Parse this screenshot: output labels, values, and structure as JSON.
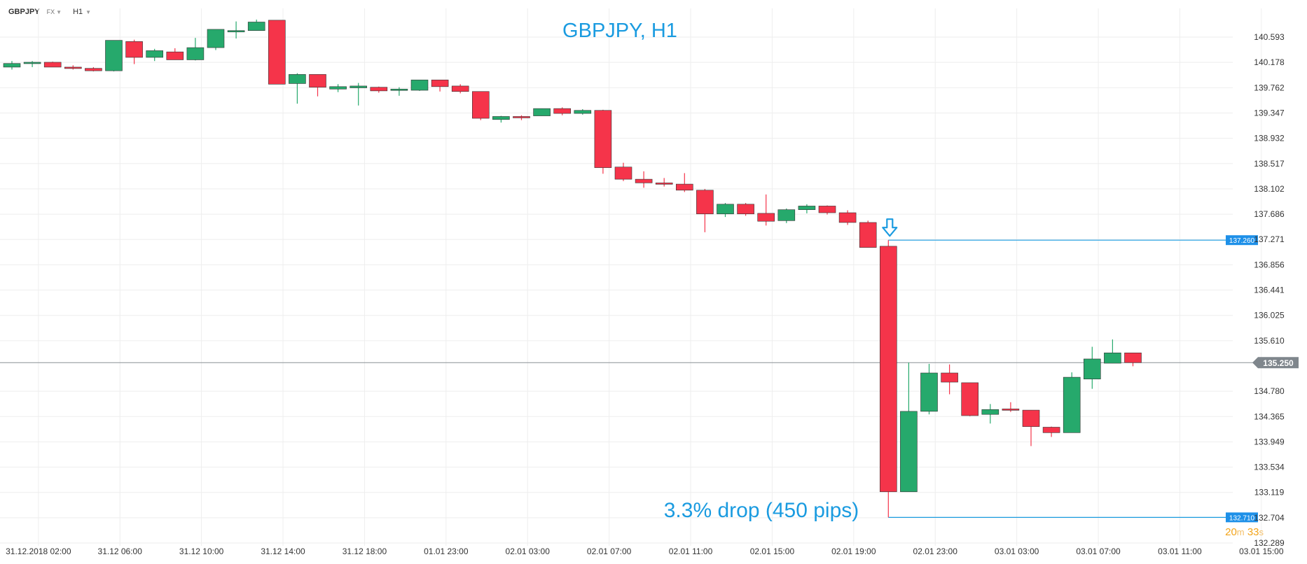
{
  "toolbar": {
    "symbol": "GBPJPY",
    "market": "FX",
    "timeframe": "H1"
  },
  "countdown": {
    "minutes": "20",
    "minutes_unit": "m",
    "seconds": "33",
    "seconds_unit": "s"
  },
  "colors": {
    "up": "#26a96c",
    "down": "#f5344a",
    "accent": "#1a9be0",
    "current": "#8a9096",
    "grid": "#eeeeee"
  },
  "chart_data": {
    "type": "candlestick",
    "title": "GBPJPY, H1",
    "annotation": "3.3% drop (450 pips)",
    "ylim": [
      132.289,
      140.593
    ],
    "y_ticks": [
      "140.593",
      "140.178",
      "139.762",
      "139.347",
      "138.932",
      "138.517",
      "138.102",
      "137.686",
      "137.271",
      "136.856",
      "136.441",
      "136.025",
      "135.610",
      "135.250",
      "134.780",
      "134.365",
      "133.949",
      "133.534",
      "133.119",
      "132.704",
      "132.289"
    ],
    "x_ticks": [
      {
        "label": "31.12.2018  02:00",
        "index": 1.3
      },
      {
        "label": "31.12  06:00",
        "index": 5.3
      },
      {
        "label": "31.12  10:00",
        "index": 9.3
      },
      {
        "label": "31.12  14:00",
        "index": 13.3
      },
      {
        "label": "31.12  18:00",
        "index": 17.3
      },
      {
        "label": "01.01  23:00",
        "index": 21.3
      },
      {
        "label": "02.01  03:00",
        "index": 25.3
      },
      {
        "label": "02.01  07:00",
        "index": 29.3
      },
      {
        "label": "02.01  11:00",
        "index": 33.3
      },
      {
        "label": "02.01  15:00",
        "index": 37.3
      },
      {
        "label": "02.01  19:00",
        "index": 41.3
      },
      {
        "label": "02.01  23:00",
        "index": 45.3
      },
      {
        "label": "03.01  03:00",
        "index": 49.3
      },
      {
        "label": "03.01  07:00",
        "index": 53.3
      },
      {
        "label": "03.01  11:00",
        "index": 57.3
      },
      {
        "label": "03.01  15:00",
        "index": 61.3
      }
    ],
    "current_price": "135.250",
    "levels": [
      {
        "label": "137.260",
        "value": 137.26,
        "from_index": 43
      },
      {
        "label": "132.710",
        "value": 132.71,
        "from_index": 43
      }
    ],
    "signal_arrow_index": 43,
    "candles": [
      {
        "o": 140.1,
        "h": 140.2,
        "l": 140.06,
        "c": 140.16
      },
      {
        "o": 140.16,
        "h": 140.2,
        "l": 140.1,
        "c": 140.18
      },
      {
        "o": 140.18,
        "h": 140.19,
        "l": 140.1,
        "c": 140.1
      },
      {
        "o": 140.1,
        "h": 140.13,
        "l": 140.06,
        "c": 140.08
      },
      {
        "o": 140.08,
        "h": 140.1,
        "l": 140.03,
        "c": 140.04
      },
      {
        "o": 140.04,
        "h": 140.54,
        "l": 140.03,
        "c": 140.54
      },
      {
        "o": 140.52,
        "h": 140.55,
        "l": 140.15,
        "c": 140.26
      },
      {
        "o": 140.26,
        "h": 140.4,
        "l": 140.2,
        "c": 140.37
      },
      {
        "o": 140.35,
        "h": 140.41,
        "l": 140.22,
        "c": 140.22
      },
      {
        "o": 140.22,
        "h": 140.58,
        "l": 140.21,
        "c": 140.42
      },
      {
        "o": 140.42,
        "h": 140.72,
        "l": 140.38,
        "c": 140.72
      },
      {
        "o": 140.68,
        "h": 140.85,
        "l": 140.57,
        "c": 140.7
      },
      {
        "o": 140.7,
        "h": 140.88,
        "l": 140.7,
        "c": 140.84
      },
      {
        "o": 140.87,
        "h": 140.87,
        "l": 139.82,
        "c": 139.82
      },
      {
        "o": 139.83,
        "h": 140.0,
        "l": 139.5,
        "c": 139.98
      },
      {
        "o": 139.98,
        "h": 139.98,
        "l": 139.62,
        "c": 139.77
      },
      {
        "o": 139.74,
        "h": 139.82,
        "l": 139.69,
        "c": 139.78
      },
      {
        "o": 139.76,
        "h": 139.84,
        "l": 139.47,
        "c": 139.79
      },
      {
        "o": 139.77,
        "h": 139.78,
        "l": 139.68,
        "c": 139.71
      },
      {
        "o": 139.72,
        "h": 139.77,
        "l": 139.63,
        "c": 139.74
      },
      {
        "o": 139.72,
        "h": 139.89,
        "l": 139.71,
        "c": 139.89
      },
      {
        "o": 139.89,
        "h": 139.89,
        "l": 139.7,
        "c": 139.78
      },
      {
        "o": 139.79,
        "h": 139.82,
        "l": 139.67,
        "c": 139.7
      },
      {
        "o": 139.7,
        "h": 139.7,
        "l": 139.23,
        "c": 139.26
      },
      {
        "o": 139.24,
        "h": 139.3,
        "l": 139.19,
        "c": 139.29
      },
      {
        "o": 139.29,
        "h": 139.31,
        "l": 139.23,
        "c": 139.27
      },
      {
        "o": 139.3,
        "h": 139.42,
        "l": 139.3,
        "c": 139.42
      },
      {
        "o": 139.42,
        "h": 139.44,
        "l": 139.31,
        "c": 139.34
      },
      {
        "o": 139.34,
        "h": 139.41,
        "l": 139.32,
        "c": 139.39
      },
      {
        "o": 139.39,
        "h": 139.4,
        "l": 138.35,
        "c": 138.45
      },
      {
        "o": 138.46,
        "h": 138.53,
        "l": 138.23,
        "c": 138.26
      },
      {
        "o": 138.26,
        "h": 138.39,
        "l": 138.12,
        "c": 138.2
      },
      {
        "o": 138.2,
        "h": 138.28,
        "l": 138.14,
        "c": 138.18
      },
      {
        "o": 138.18,
        "h": 138.36,
        "l": 138.05,
        "c": 138.08
      },
      {
        "o": 138.08,
        "h": 138.1,
        "l": 137.39,
        "c": 137.69
      },
      {
        "o": 137.69,
        "h": 137.87,
        "l": 137.64,
        "c": 137.85
      },
      {
        "o": 137.85,
        "h": 137.87,
        "l": 137.66,
        "c": 137.69
      },
      {
        "o": 137.7,
        "h": 138.01,
        "l": 137.5,
        "c": 137.57
      },
      {
        "o": 137.58,
        "h": 137.78,
        "l": 137.54,
        "c": 137.76
      },
      {
        "o": 137.76,
        "h": 137.85,
        "l": 137.7,
        "c": 137.82
      },
      {
        "o": 137.82,
        "h": 137.83,
        "l": 137.68,
        "c": 137.71
      },
      {
        "o": 137.71,
        "h": 137.75,
        "l": 137.51,
        "c": 137.55
      },
      {
        "o": 137.55,
        "h": 137.58,
        "l": 137.14,
        "c": 137.14
      },
      {
        "o": 137.16,
        "h": 137.26,
        "l": 132.71,
        "c": 133.13
      },
      {
        "o": 133.13,
        "h": 135.25,
        "l": 133.13,
        "c": 134.45
      },
      {
        "o": 134.45,
        "h": 135.23,
        "l": 134.4,
        "c": 135.08
      },
      {
        "o": 135.08,
        "h": 135.22,
        "l": 134.73,
        "c": 134.93
      },
      {
        "o": 134.92,
        "h": 134.92,
        "l": 134.37,
        "c": 134.38
      },
      {
        "o": 134.4,
        "h": 134.57,
        "l": 134.25,
        "c": 134.48
      },
      {
        "o": 134.49,
        "h": 134.6,
        "l": 134.44,
        "c": 134.47
      },
      {
        "o": 134.47,
        "h": 134.47,
        "l": 133.88,
        "c": 134.2
      },
      {
        "o": 134.19,
        "h": 134.2,
        "l": 134.03,
        "c": 134.1
      },
      {
        "o": 134.1,
        "h": 135.09,
        "l": 134.1,
        "c": 135.01
      },
      {
        "o": 134.98,
        "h": 135.51,
        "l": 134.82,
        "c": 135.31
      },
      {
        "o": 135.24,
        "h": 135.63,
        "l": 135.24,
        "c": 135.41
      },
      {
        "o": 135.41,
        "h": 135.41,
        "l": 135.19,
        "c": 135.25
      }
    ]
  }
}
